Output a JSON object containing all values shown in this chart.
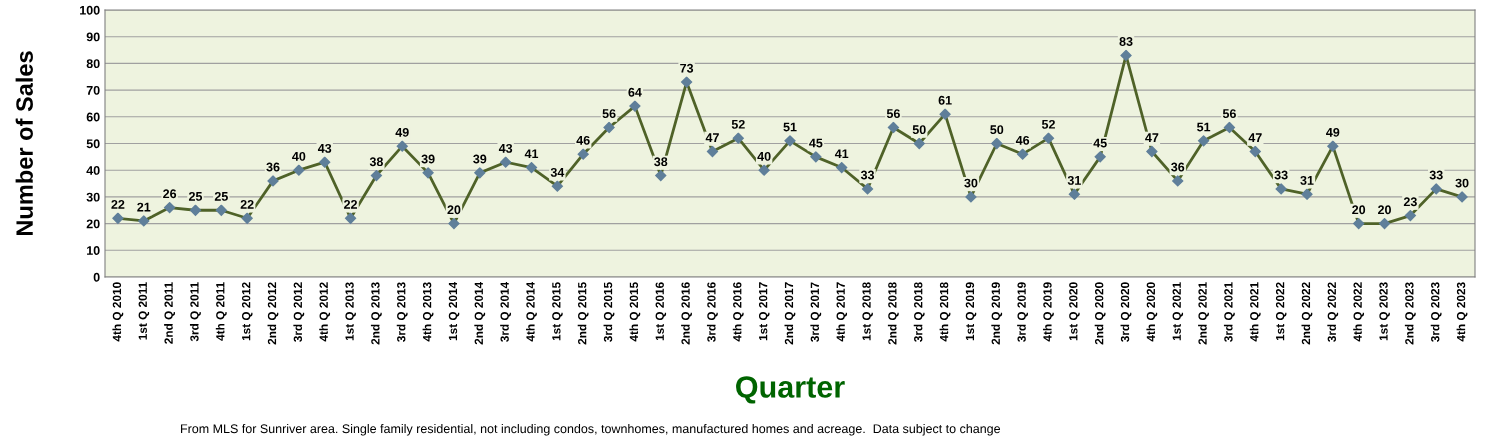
{
  "chart_data": {
    "type": "line",
    "xlabel": "Quarter",
    "ylabel": "Number of Sales",
    "categories": [
      "4th Q 2010",
      "1st Q 2011",
      "2nd Q 2011",
      "3rd Q 2011",
      "4th Q 2011",
      "1st Q 2012",
      "2nd Q 2012",
      "3rd Q 2012",
      "4th Q 2012",
      "1st Q 2013",
      "2nd Q 2013",
      "3rd Q 2013",
      "4th Q 2013",
      "1st Q 2014",
      "2nd Q 2014",
      "3rd Q 2014",
      "4th Q 2014",
      "1st Q 2015",
      "2nd Q 2015",
      "3rd Q 2015",
      "4th Q 2015",
      "1st Q 2016",
      "2nd Q 2016",
      "3rd Q 2016",
      "4th Q 2016",
      "1st Q 2017",
      "2nd Q 2017",
      "3rd Q 2017",
      "4th Q 2017",
      "1st Q 2018",
      "2nd Q 2018",
      "3rd Q 2018",
      "4th Q 2018",
      "1st Q 2019",
      "2nd Q 2019",
      "3rd Q 2019",
      "4th Q 2019",
      "1st Q 2020",
      "2nd Q 2020",
      "3rd Q 2020",
      "4th Q 2020",
      "1st Q 2021",
      "2nd Q 2021",
      "3rd Q 2021",
      "4th Q 2021",
      "1st Q 2022",
      "2nd Q 2022",
      "3rd Q 2022",
      "4th Q 2022",
      "1st Q 2023",
      "2nd Q 2023",
      "3rd Q 2023",
      "4th Q 2023"
    ],
    "series": [
      {
        "color": "#4f6228",
        "values": [
          22,
          21,
          26,
          25,
          25,
          22,
          36,
          40,
          43,
          22,
          38,
          49,
          39,
          20,
          39,
          43,
          41,
          34,
          46,
          56,
          64,
          38,
          73,
          47,
          52,
          40,
          51,
          45,
          41,
          33,
          56,
          50,
          61,
          30,
          50,
          46,
          52,
          31,
          45,
          83,
          47,
          36,
          51,
          56,
          47,
          33,
          31,
          49,
          20,
          20,
          23,
          33,
          30
        ]
      }
    ],
    "ylim": [
      0,
      100
    ],
    "yticks": [
      0,
      10,
      20,
      30,
      40,
      50,
      60,
      70,
      80,
      90,
      100
    ],
    "grid": "y",
    "marker": "diamond",
    "line_style": "solid",
    "data_labels": true,
    "legend": false,
    "annotations": [
      "From MLS for Sunriver area. Single family residential, not including condos, townhomes, manufactured homes and acreage.  Data subject to change"
    ]
  }
}
